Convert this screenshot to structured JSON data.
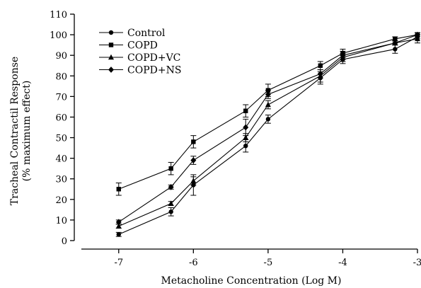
{
  "chart_data": {
    "type": "line",
    "title": "",
    "xlabel": "Metacholine Concentration (Log M)",
    "ylabel_line1": "Tracheal Contractil Response",
    "ylabel_line2": "(% maximum effect)",
    "xlim": [
      -7.5,
      -3
    ],
    "ylim": [
      0,
      110
    ],
    "x_ticks": [
      -7,
      -6,
      -5,
      -4,
      -3
    ],
    "x_tick_labels": [
      "-7",
      "-6",
      "-5",
      "-4",
      "-3"
    ],
    "y_ticks": [
      0,
      10,
      20,
      30,
      40,
      50,
      60,
      70,
      80,
      90,
      100,
      110
    ],
    "y_tick_labels": [
      "0",
      "10",
      "20",
      "30",
      "40",
      "50",
      "60",
      "70",
      "80",
      "90",
      "100",
      "110"
    ],
    "grid": false,
    "legend_position": "top-left",
    "x": [
      -7,
      -6.3,
      -6,
      -5.3,
      -5,
      -4.3,
      -4,
      -3.3,
      -3
    ],
    "series": [
      {
        "name": "Control",
        "marker": "circle",
        "values": [
          3,
          14,
          27,
          46,
          59,
          79,
          88,
          93,
          99
        ],
        "errors": [
          1,
          2,
          5,
          3,
          2,
          3,
          2,
          2,
          1
        ]
      },
      {
        "name": "COPD",
        "marker": "square",
        "values": [
          25,
          35,
          48,
          63,
          73,
          85,
          91,
          98,
          100
        ],
        "errors": [
          3,
          3,
          3,
          3,
          3,
          2,
          2,
          1,
          1
        ]
      },
      {
        "name": "COPD+VC",
        "marker": "triangle",
        "values": [
          7,
          18,
          29,
          50,
          66,
          80,
          89,
          96,
          98
        ],
        "errors": [
          1,
          1,
          2,
          2,
          2,
          3,
          2,
          1,
          2
        ]
      },
      {
        "name": "COPD+NS",
        "marker": "diamond",
        "values": [
          9,
          26,
          39,
          55,
          71,
          81,
          90,
          96,
          100
        ],
        "errors": [
          1,
          1,
          2,
          4,
          2,
          2,
          2,
          1,
          1
        ]
      }
    ]
  }
}
